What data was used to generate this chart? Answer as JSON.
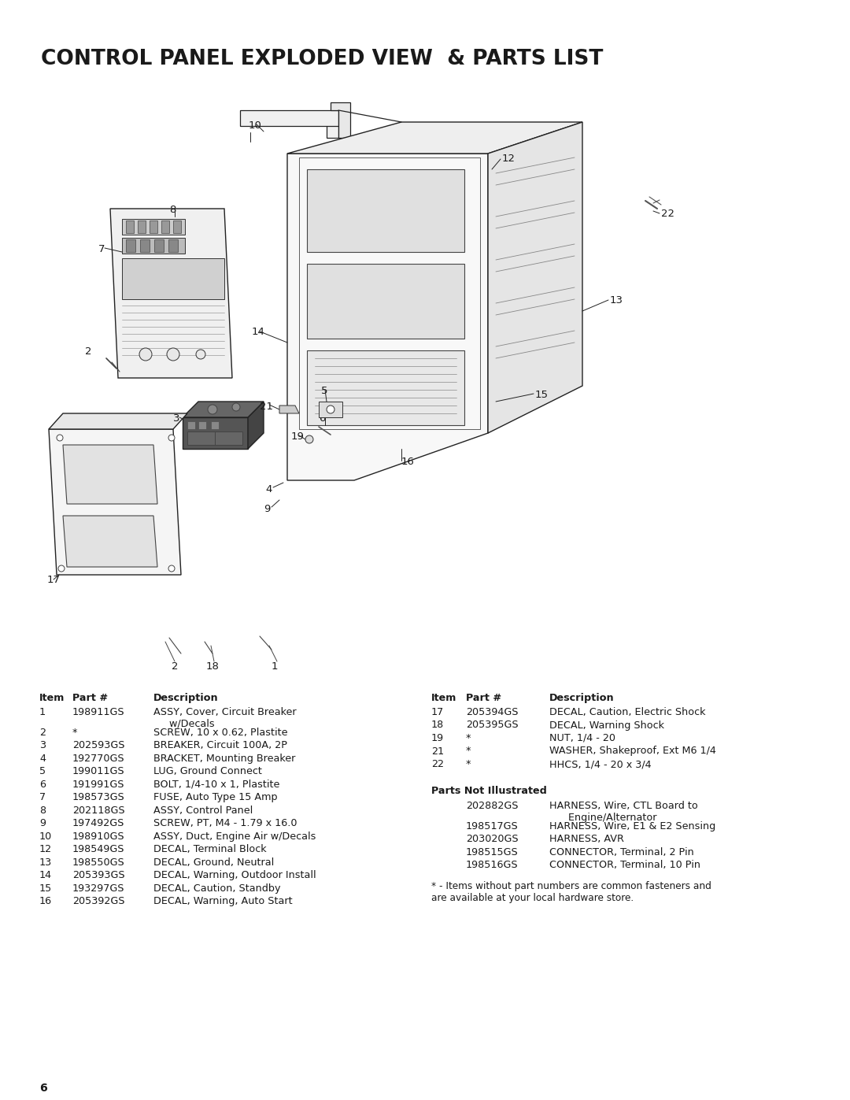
{
  "title": "CONTROL PANEL EXPLODED VIEW  & PARTS LIST",
  "page_number": "6",
  "background_color": "#ffffff",
  "text_color": "#1a1a1a",
  "title_fontsize": 19,
  "body_fontsize": 9.2,
  "parts_list_left": [
    {
      "item": "1",
      "part": "198911GS",
      "desc": "ASSY, Cover, Circuit Breaker\n     w/Decals"
    },
    {
      "item": "2",
      "part": "*",
      "desc": "SCREW, 10 x 0.62, Plastite"
    },
    {
      "item": "3",
      "part": "202593GS",
      "desc": "BREAKER, Circuit 100A, 2P"
    },
    {
      "item": "4",
      "part": "192770GS",
      "desc": "BRACKET, Mounting Breaker"
    },
    {
      "item": "5",
      "part": "199011GS",
      "desc": "LUG, Ground Connect"
    },
    {
      "item": "6",
      "part": "191991GS",
      "desc": "BOLT, 1/4-10 x 1, Plastite"
    },
    {
      "item": "7",
      "part": "198573GS",
      "desc": "FUSE, Auto Type 15 Amp"
    },
    {
      "item": "8",
      "part": "202118GS",
      "desc": "ASSY, Control Panel"
    },
    {
      "item": "9",
      "part": "197492GS",
      "desc": "SCREW, PT, M4 - 1.79 x 16.0"
    },
    {
      "item": "10",
      "part": "198910GS",
      "desc": "ASSY, Duct, Engine Air w/Decals"
    },
    {
      "item": "12",
      "part": "198549GS",
      "desc": "DECAL, Terminal Block"
    },
    {
      "item": "13",
      "part": "198550GS",
      "desc": "DECAL, Ground, Neutral"
    },
    {
      "item": "14",
      "part": "205393GS",
      "desc": "DECAL, Warning, Outdoor Install"
    },
    {
      "item": "15",
      "part": "193297GS",
      "desc": "DECAL, Caution, Standby"
    },
    {
      "item": "16",
      "part": "205392GS",
      "desc": "DECAL, Warning, Auto Start"
    }
  ],
  "parts_list_right": [
    {
      "item": "17",
      "part": "205394GS",
      "desc": "DECAL, Caution, Electric Shock"
    },
    {
      "item": "18",
      "part": "205395GS",
      "desc": "DECAL, Warning Shock"
    },
    {
      "item": "19",
      "part": "*",
      "desc": "NUT, 1/4 - 20"
    },
    {
      "item": "21",
      "part": "*",
      "desc": "WASHER, Shakeproof, Ext M6 1/4"
    },
    {
      "item": "22",
      "part": "*",
      "desc": "HHCS, 1/4 - 20 x 3/4"
    }
  ],
  "parts_not_illustrated": [
    {
      "part": "202882GS",
      "desc": "HARNESS, Wire, CTL Board to\n      Engine/Alternator"
    },
    {
      "part": "198517GS",
      "desc": "HARNESS, Wire, E1 & E2 Sensing"
    },
    {
      "part": "203020GS",
      "desc": "HARNESS, AVR"
    },
    {
      "part": "198515GS",
      "desc": "CONNECTOR, Terminal, 2 Pin"
    },
    {
      "part": "198516GS",
      "desc": "CONNECTOR, Terminal, 10 Pin"
    }
  ],
  "footnote": "* - Items without part numbers are common fasteners and\nare available at your local hardware store."
}
